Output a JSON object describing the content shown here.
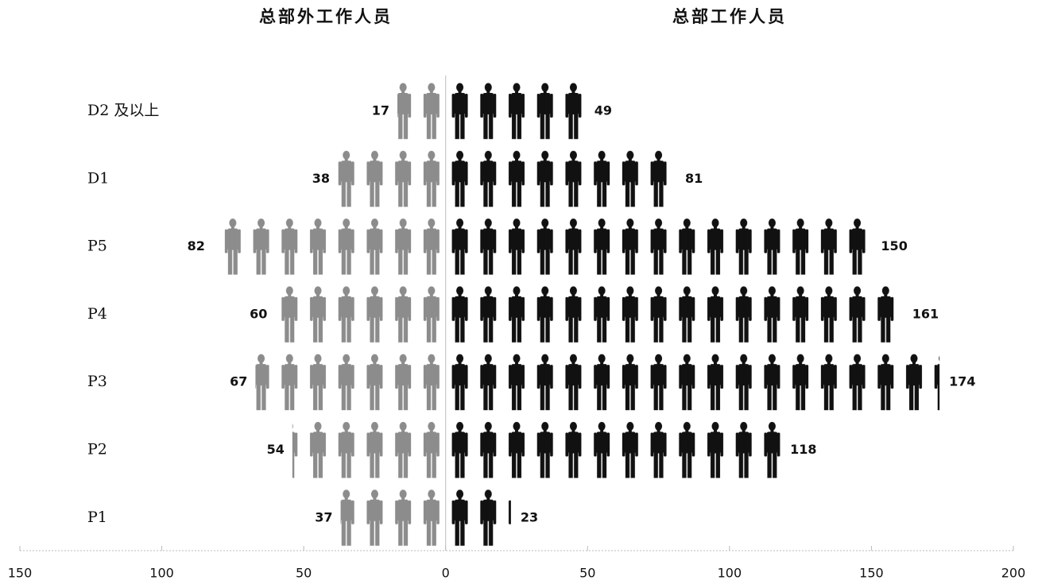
{
  "chart_data": {
    "type": "pictogram",
    "categories": [
      "D2 及以上",
      "D1",
      "P5",
      "P4",
      "P3",
      "P2",
      "P1"
    ],
    "series": [
      {
        "name": "总部外工作人员",
        "color": "#8c8c8c",
        "values": [
          -17,
          -38,
          -82,
          -60,
          -67,
          -54,
          -37
        ],
        "value_labels": [
          "17",
          "38",
          "82",
          "60",
          "67",
          "54",
          "37"
        ]
      },
      {
        "name": "总部工作人员",
        "color": "#111111",
        "values": [
          49,
          81,
          150,
          161,
          174,
          118,
          23
        ]
      }
    ],
    "xlim": [
      -150,
      200
    ],
    "xticks": [
      {
        "value": -150,
        "label": "150"
      },
      {
        "value": -100,
        "label": "100"
      },
      {
        "value": -50,
        "label": "50"
      },
      0,
      50,
      100,
      150,
      200
    ]
  }
}
